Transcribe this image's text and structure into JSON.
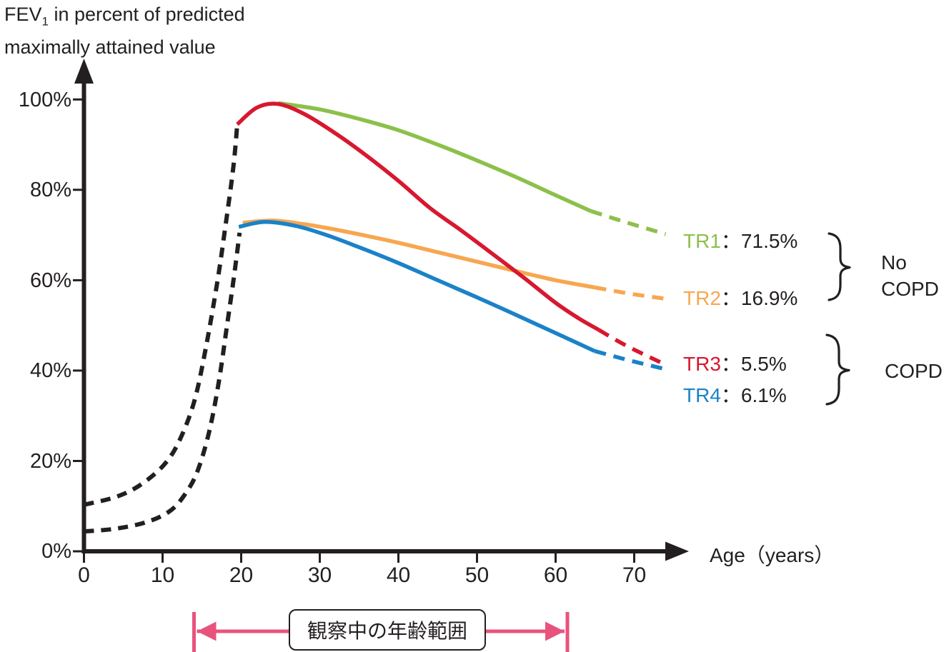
{
  "title": {
    "main": "FEV",
    "sub": "1",
    "rest": " in percent of predicted",
    "line2": "maximally attained value"
  },
  "axes": {
    "x_label": "Age（years）",
    "x_ticks": [
      "0",
      "10",
      "20",
      "30",
      "40",
      "50",
      "60",
      "70"
    ],
    "y_ticks": [
      "100%",
      "80%",
      "60%",
      "40%",
      "20%",
      "0%"
    ]
  },
  "legend": {
    "separator": "：",
    "items": [
      {
        "name": "TR1",
        "value": "71.5%",
        "color": "#8cc04b"
      },
      {
        "name": "TR2",
        "value": "16.9%",
        "color": "#f7a750"
      },
      {
        "name": "TR3",
        "value": "5.5%",
        "color": "#d7182f"
      },
      {
        "name": "TR4",
        "value": "6.1%",
        "color": "#1a82c8"
      }
    ],
    "group1_line1": "No",
    "group1_line2": "COPD",
    "group2": "COPD"
  },
  "chart_data": {
    "type": "line",
    "title": "FEV1 in percent of predicted maximally attained value vs Age",
    "xlabel": "Age (years)",
    "ylabel": "FEV1 in percent of predicted maximally attained value",
    "xlim": [
      0,
      77
    ],
    "ylim": [
      0,
      105
    ],
    "x_ticks": [
      0,
      10,
      20,
      30,
      40,
      50,
      60,
      70
    ],
    "y_ticks": [
      0,
      20,
      40,
      60,
      80,
      100
    ],
    "grid": false,
    "legend_position": "right",
    "groups": [
      {
        "label": "No COPD",
        "members": [
          "TR1",
          "TR2"
        ]
      },
      {
        "label": "COPD",
        "members": [
          "TR3",
          "TR4"
        ]
      }
    ],
    "series": [
      {
        "name": "growth-upper",
        "color": "#231f20",
        "segments": [
          {
            "style": "dashed",
            "points": [
              [
                0,
                10.3
              ],
              [
                4,
                12
              ],
              [
                7,
                14.5
              ],
              [
                10,
                18.8
              ],
              [
                12,
                24
              ],
              [
                14,
                33
              ],
              [
                15.5,
                45
              ],
              [
                17,
                60
              ],
              [
                18,
                72
              ],
              [
                19,
                85
              ],
              [
                19.5,
                94.5
              ]
            ]
          }
        ]
      },
      {
        "name": "growth-lower",
        "color": "#231f20",
        "segments": [
          {
            "style": "dashed",
            "points": [
              [
                0,
                4.4
              ],
              [
                4,
                5
              ],
              [
                8,
                6.5
              ],
              [
                11,
                9
              ],
              [
                13,
                13
              ],
              [
                14.5,
                18
              ],
              [
                16,
                27
              ],
              [
                17.2,
                38
              ],
              [
                18.2,
                50
              ],
              [
                19.1,
                61
              ],
              [
                19.8,
                70.5
              ]
            ]
          }
        ]
      },
      {
        "name": "TR1",
        "share": "71.5%",
        "color": "#8cc04b",
        "segments": [
          {
            "style": "solid",
            "points": [
              [
                24.7,
                99.2
              ],
              [
                30,
                97.8
              ],
              [
                35,
                95.7
              ],
              [
                40,
                93.2
              ],
              [
                45.6,
                89.6
              ],
              [
                50,
                86.5
              ],
              [
                55,
                82.8
              ],
              [
                60,
                78.8
              ],
              [
                64.5,
                75.3
              ]
            ]
          },
          {
            "style": "dashed",
            "points": [
              [
                64.5,
                75.3
              ],
              [
                69,
                72.8
              ],
              [
                74,
                70.2
              ]
            ]
          }
        ]
      },
      {
        "name": "TR2",
        "share": "16.9%",
        "color": "#f7a750",
        "segments": [
          {
            "style": "solid",
            "points": [
              [
                20.2,
                72.7
              ],
              [
                24,
                73.2
              ],
              [
                28,
                72.4
              ],
              [
                32,
                71.2
              ],
              [
                36,
                69.8
              ],
              [
                40,
                68.3
              ],
              [
                45,
                66.2
              ],
              [
                50,
                64.1
              ],
              [
                55,
                62
              ],
              [
                60,
                60
              ],
              [
                65,
                58.4
              ]
            ]
          },
          {
            "style": "dashed",
            "points": [
              [
                65,
                58.4
              ],
              [
                69.5,
                57
              ],
              [
                74,
                55.9
              ]
            ]
          }
        ]
      },
      {
        "name": "TR4",
        "share": "6.1%",
        "color": "#1a82c8",
        "segments": [
          {
            "style": "solid",
            "points": [
              [
                19.7,
                71.8
              ],
              [
                23,
                72.9
              ],
              [
                27,
                72
              ],
              [
                31,
                69.9
              ],
              [
                35,
                67.3
              ],
              [
                40,
                63.8
              ],
              [
                45,
                60
              ],
              [
                50,
                56.2
              ],
              [
                55,
                52.3
              ],
              [
                60,
                48.3
              ],
              [
                65,
                44.3
              ]
            ]
          },
          {
            "style": "dashed",
            "points": [
              [
                65,
                44.3
              ],
              [
                69.5,
                42.2
              ],
              [
                74,
                40.3
              ]
            ]
          }
        ]
      },
      {
        "name": "TR3",
        "share": "5.5%",
        "color": "#d7182f",
        "segments": [
          {
            "style": "solid",
            "points": [
              [
                19.5,
                94.5
              ],
              [
                22,
                98.2
              ],
              [
                24.7,
                99
              ],
              [
                28,
                96.8
              ],
              [
                32,
                92.5
              ],
              [
                36,
                87.5
              ],
              [
                40,
                82
              ],
              [
                44,
                76
              ],
              [
                48,
                71
              ],
              [
                52,
                65.8
              ],
              [
                56,
                60.5
              ],
              [
                60,
                55
              ],
              [
                63,
                51.5
              ],
              [
                65.5,
                49
              ]
            ]
          },
          {
            "style": "dashed",
            "points": [
              [
                65.5,
                49
              ],
              [
                69,
                45.5
              ],
              [
                73.5,
                41.7
              ]
            ]
          }
        ]
      }
    ],
    "observed_range": {
      "label": "観察中の年齢範囲",
      "from_age": 14,
      "to_age": 61.5,
      "color": "#e8537d"
    }
  }
}
